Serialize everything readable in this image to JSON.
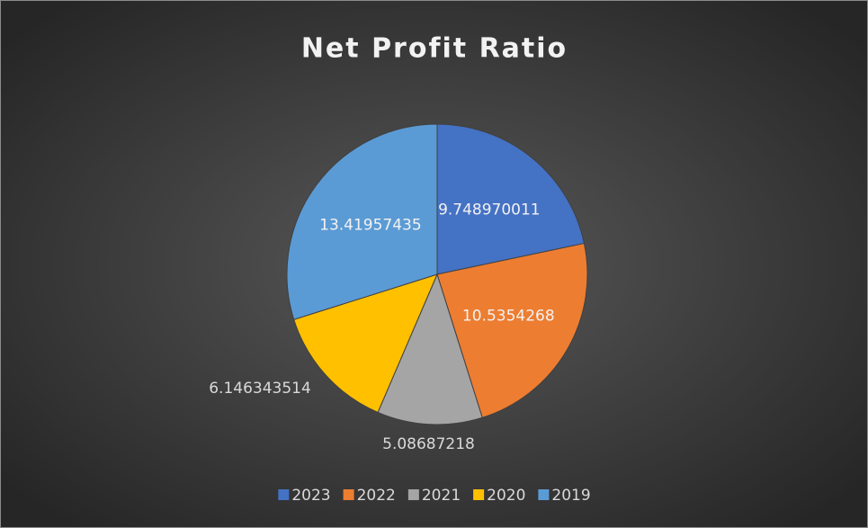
{
  "chart_data": {
    "type": "pie",
    "title": "Net Profit Ratio",
    "categories": [
      "2023",
      "2022",
      "2021",
      "2020",
      "2019"
    ],
    "values": [
      9.748970011,
      10.5354268,
      5.08687218,
      6.146343514,
      13.41957435
    ],
    "colors": [
      "#4472c4",
      "#ed7d31",
      "#a5a5a5",
      "#ffc000",
      "#5b9bd5"
    ],
    "legend": "bottom"
  }
}
